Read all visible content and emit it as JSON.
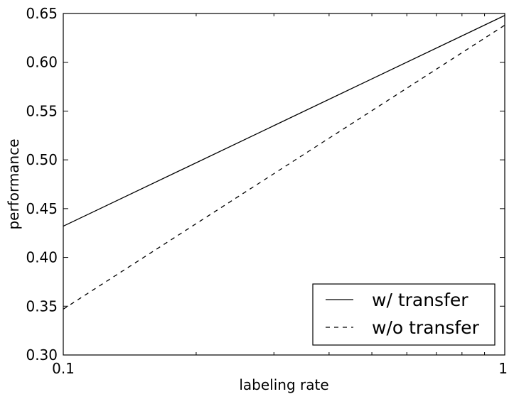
{
  "chart_data": {
    "type": "line",
    "title": "",
    "xlabel": "labeling rate",
    "ylabel": "performance",
    "xscale": "log",
    "xlim": [
      0.1,
      1
    ],
    "ylim": [
      0.3,
      0.65
    ],
    "xticks": [
      {
        "value": 0.1,
        "label": "0.1"
      },
      {
        "value": 1,
        "label": "1"
      }
    ],
    "yticks": [
      {
        "value": 0.3,
        "label": "0.30"
      },
      {
        "value": 0.35,
        "label": "0.35"
      },
      {
        "value": 0.4,
        "label": "0.40"
      },
      {
        "value": 0.45,
        "label": "0.45"
      },
      {
        "value": 0.5,
        "label": "0.50"
      },
      {
        "value": 0.55,
        "label": "0.55"
      },
      {
        "value": 0.6,
        "label": "0.60"
      },
      {
        "value": 0.65,
        "label": "0.65"
      }
    ],
    "grid": false,
    "legend_position": "lower-right",
    "series": [
      {
        "name": "w/ transfer",
        "linestyle": "solid",
        "color": "#000000",
        "x": [
          0.1,
          1
        ],
        "y": [
          0.432,
          0.648
        ]
      },
      {
        "name": "w/o transfer",
        "linestyle": "dashed",
        "color": "#000000",
        "x": [
          0.1,
          1
        ],
        "y": [
          0.347,
          0.638
        ]
      }
    ]
  }
}
